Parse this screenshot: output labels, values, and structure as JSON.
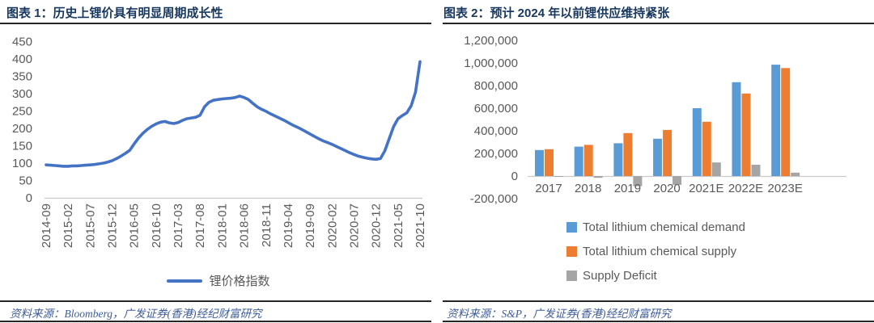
{
  "style": {
    "title_color": "#17375E",
    "axis_text_color": "#595959",
    "rule_color": "#262626",
    "source_color": "#3E5C97",
    "axis_line_color": "#C9C9C9"
  },
  "sources": {
    "figure1": "资料来源：Bloomberg，广发证券(香港)经纪财富研究",
    "figure2": "资料来源：S&P，广发证券(香港)经纪财富研究"
  },
  "chart_data": [
    {
      "type": "line",
      "title": "图表 1：历史上锂价具有明显周期成长性",
      "xlabel": "",
      "ylabel": "",
      "ylim": [
        0,
        450
      ],
      "ytick_step": 50,
      "grid": false,
      "legend_position": "bottom-center",
      "x_note": "monthly points, 2014-09 through 2021-10",
      "x_tick_labels": [
        "2014-09",
        "2015-02",
        "2015-07",
        "2015-12",
        "2016-05",
        "2016-10",
        "2017-03",
        "2017-08",
        "2018-01",
        "2018-06",
        "2018-11",
        "2019-04",
        "2019-09",
        "2020-02",
        "2020-07",
        "2020-12",
        "2021-05",
        "2021-10"
      ],
      "series": [
        {
          "name": "锂价格指数",
          "color": "#4472C4",
          "values": [
            95,
            94,
            93,
            92,
            91,
            91,
            92,
            92,
            93,
            94,
            95,
            96,
            98,
            100,
            103,
            107,
            113,
            120,
            128,
            137,
            155,
            172,
            186,
            197,
            206,
            213,
            218,
            220,
            216,
            214,
            217,
            223,
            228,
            230,
            232,
            238,
            262,
            275,
            281,
            283,
            285,
            286,
            287,
            289,
            293,
            289,
            283,
            272,
            262,
            255,
            249,
            242,
            236,
            230,
            224,
            217,
            210,
            204,
            198,
            191,
            184,
            177,
            170,
            164,
            159,
            154,
            148,
            142,
            136,
            130,
            125,
            120,
            117,
            114,
            112,
            111,
            113,
            135,
            170,
            205,
            228,
            237,
            245,
            265,
            305,
            392
          ]
        }
      ]
    },
    {
      "type": "bar",
      "title": "图表 2：预计 2024 年以前锂供应维持紧张",
      "xlabel": "",
      "ylabel": "",
      "ylim": [
        -200000,
        1200000
      ],
      "ytick_step": 200000,
      "grid": false,
      "legend_position": "bottom-left-stacked",
      "categories": [
        "2017",
        "2018",
        "2019",
        "2020",
        "2021E",
        "2022E",
        "2023E"
      ],
      "series": [
        {
          "name": "Total lithium chemical demand",
          "color": "#5B9BD5",
          "values": [
            230000,
            260000,
            290000,
            330000,
            600000,
            830000,
            985000
          ]
        },
        {
          "name": "Total lithium chemical supply",
          "color": "#ED7D31",
          "values": [
            237000,
            276000,
            380000,
            408000,
            480000,
            730000,
            955000
          ]
        },
        {
          "name": "Supply Deficit",
          "color": "#A5A5A5",
          "values": [
            -7000,
            -16000,
            -90000,
            -78000,
            120000,
            100000,
            30000
          ]
        }
      ]
    }
  ]
}
